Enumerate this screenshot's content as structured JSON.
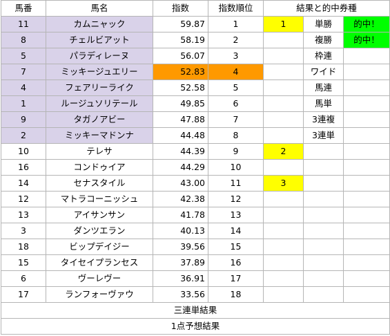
{
  "headers": {
    "umaban": "馬番",
    "name": "馬名",
    "index": "指数",
    "rank": "指数順位",
    "result": "結果と的中券種"
  },
  "rows": [
    {
      "umaban": "11",
      "name": "カムニャック",
      "index": "59.87",
      "rank": "1",
      "place": "1",
      "bet": "単勝",
      "hit": "的中！"
    },
    {
      "umaban": "8",
      "name": "チェルビアット",
      "index": "58.19",
      "rank": "2",
      "place": "",
      "bet": "複勝",
      "hit": "的中！"
    },
    {
      "umaban": "5",
      "name": "パラディレーヌ",
      "index": "56.07",
      "rank": "3",
      "place": "",
      "bet": "枠連",
      "hit": ""
    },
    {
      "umaban": "7",
      "name": "ミッキージュエリー",
      "index": "52.83",
      "rank": "4",
      "place": "",
      "bet": "ワイド",
      "hit": ""
    },
    {
      "umaban": "4",
      "name": "フェアリーライク",
      "index": "52.58",
      "rank": "5",
      "place": "",
      "bet": "馬連",
      "hit": ""
    },
    {
      "umaban": "1",
      "name": "ルージュソリテール",
      "index": "49.85",
      "rank": "6",
      "place": "",
      "bet": "馬単",
      "hit": ""
    },
    {
      "umaban": "9",
      "name": "タガノアビー",
      "index": "47.88",
      "rank": "7",
      "place": "",
      "bet": "3連複",
      "hit": ""
    },
    {
      "umaban": "2",
      "name": "ミッキーマドンナ",
      "index": "44.48",
      "rank": "8",
      "place": "",
      "bet": "3連単",
      "hit": ""
    },
    {
      "umaban": "10",
      "name": "テレサ",
      "index": "44.39",
      "rank": "9",
      "place": "2",
      "bet": "",
      "hit": ""
    },
    {
      "umaban": "16",
      "name": "コンドゥイア",
      "index": "44.29",
      "rank": "10",
      "place": "",
      "bet": "",
      "hit": ""
    },
    {
      "umaban": "14",
      "name": "セナスタイル",
      "index": "43.00",
      "rank": "11",
      "place": "3",
      "bet": "",
      "hit": ""
    },
    {
      "umaban": "12",
      "name": "マトラコーニッシュ",
      "index": "42.38",
      "rank": "12",
      "place": "",
      "bet": "",
      "hit": ""
    },
    {
      "umaban": "13",
      "name": "アイサンサン",
      "index": "41.78",
      "rank": "13",
      "place": "",
      "bet": "",
      "hit": ""
    },
    {
      "umaban": "3",
      "name": "ダンツエラン",
      "index": "40.13",
      "rank": "14",
      "place": "",
      "bet": "",
      "hit": ""
    },
    {
      "umaban": "18",
      "name": "ビップデイジー",
      "index": "39.56",
      "rank": "15",
      "place": "",
      "bet": "",
      "hit": ""
    },
    {
      "umaban": "15",
      "name": "タイセイプランセス",
      "index": "37.89",
      "rank": "16",
      "place": "",
      "bet": "",
      "hit": ""
    },
    {
      "umaban": "6",
      "name": "ヴーレヴー",
      "index": "36.91",
      "rank": "17",
      "place": "",
      "bet": "",
      "hit": ""
    },
    {
      "umaban": "17",
      "name": "ランフォーヴァウ",
      "index": "33.56",
      "rank": "18",
      "place": "",
      "bet": "",
      "hit": ""
    }
  ],
  "footer": {
    "trifecta": "三連単結果",
    "one_point": "1点予想結果"
  },
  "colors": {
    "top8": "#d9d2e9",
    "highlight": "#ff9900",
    "place": "#ffff00",
    "hit": "#00ff00"
  }
}
